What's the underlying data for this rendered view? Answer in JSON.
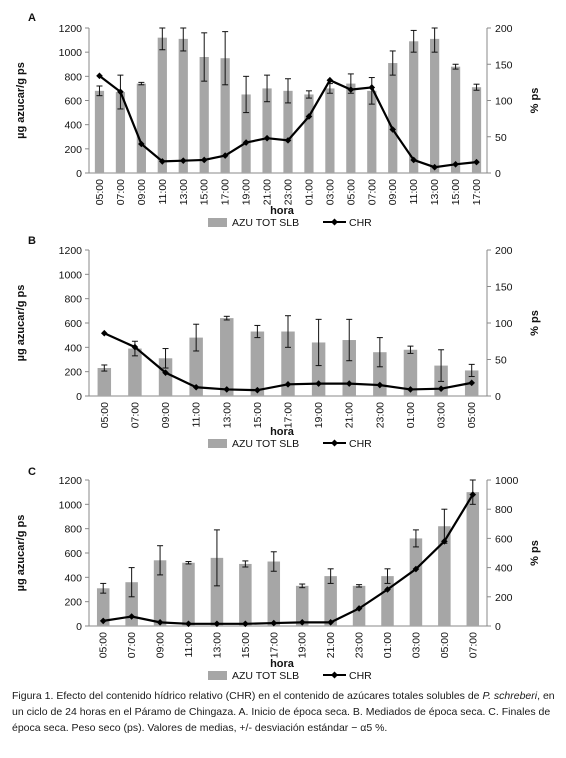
{
  "chart_data": [
    {
      "type": "bar",
      "panel_label": "A",
      "categories": [
        "05:00",
        "07:00",
        "09:00",
        "11:00",
        "13:00",
        "15:00",
        "17:00",
        "19:00",
        "21:00",
        "23:00",
        "01:00",
        "03:00",
        "05:00",
        "07:00",
        "09:00",
        "11:00",
        "13:00",
        "15:00",
        "17:00"
      ],
      "xlabel": "hora",
      "ylabel": "µg azucar/g ps",
      "y2label": "% ps",
      "ylim": [
        0,
        1200
      ],
      "y2lim": [
        0,
        200
      ],
      "yticks": [
        "0",
        "200",
        "400",
        "600",
        "800",
        "1000",
        "1200"
      ],
      "y2ticks": [
        "0",
        "50",
        "100",
        "150",
        "200"
      ],
      "series": [
        {
          "name": "AZU TOT SLB",
          "kind": "bar",
          "axis": "left",
          "color": "#a6a6a6",
          "values": [
            680,
            670,
            740,
            1120,
            1110,
            960,
            950,
            650,
            700,
            680,
            650,
            700,
            740,
            680,
            910,
            1090,
            1110,
            880,
            710
          ],
          "errors": [
            40,
            140,
            10,
            100,
            100,
            200,
            220,
            150,
            110,
            100,
            30,
            40,
            80,
            110,
            100,
            90,
            110,
            20,
            25
          ]
        },
        {
          "name": "CHR",
          "kind": "line",
          "axis": "right",
          "color": "#000000",
          "values": [
            134,
            112,
            40,
            16,
            17,
            18,
            24,
            42,
            48,
            45,
            78,
            128,
            115,
            118,
            60,
            18,
            8,
            12,
            15
          ]
        }
      ]
    },
    {
      "type": "bar",
      "panel_label": "B",
      "categories": [
        "05:00",
        "07:00",
        "09:00",
        "11:00",
        "13:00",
        "15:00",
        "17:00",
        "19:00",
        "21:00",
        "23:00",
        "01:00",
        "03:00",
        "05:00"
      ],
      "xlabel": "hora",
      "ylabel": "µg azucar/g ps",
      "y2label": "% ps",
      "ylim": [
        0,
        1200
      ],
      "y2lim": [
        0,
        200
      ],
      "yticks": [
        "0",
        "200",
        "400",
        "600",
        "800",
        "1000",
        "1200"
      ],
      "y2ticks": [
        "0",
        "50",
        "100",
        "150",
        "200"
      ],
      "series": [
        {
          "name": "AZU TOT SLB",
          "kind": "bar",
          "axis": "left",
          "color": "#a6a6a6",
          "values": [
            230,
            390,
            310,
            480,
            640,
            530,
            530,
            440,
            460,
            360,
            380,
            250,
            210
          ],
          "errors": [
            25,
            60,
            80,
            110,
            15,
            50,
            130,
            190,
            170,
            120,
            30,
            130,
            50
          ]
        },
        {
          "name": "CHR",
          "kind": "line",
          "axis": "right",
          "color": "#000000",
          "values": [
            86,
            67,
            32,
            12,
            9,
            8,
            16,
            17,
            17,
            15,
            9,
            10,
            18
          ]
        }
      ]
    },
    {
      "type": "bar",
      "panel_label": "C",
      "categories": [
        "05:00",
        "07:00",
        "09:00",
        "11:00",
        "13:00",
        "15:00",
        "17:00",
        "19:00",
        "21:00",
        "23:00",
        "01:00",
        "03:00",
        "05:00",
        "07:00"
      ],
      "xlabel": "hora",
      "ylabel": "µg azucar/g ps",
      "y2label": "% ps",
      "ylim": [
        0,
        1200
      ],
      "y2lim": [
        0,
        1000
      ],
      "yticks": [
        "0",
        "200",
        "400",
        "600",
        "800",
        "1000",
        "1200"
      ],
      "y2ticks": [
        "0",
        "200",
        "400",
        "600",
        "800",
        "1000"
      ],
      "series": [
        {
          "name": "AZU TOT SLB",
          "kind": "bar",
          "axis": "left",
          "color": "#a6a6a6",
          "values": [
            310,
            360,
            540,
            520,
            560,
            510,
            530,
            330,
            410,
            330,
            410,
            720,
            820,
            1100
          ],
          "errors": [
            40,
            120,
            120,
            10,
            230,
            25,
            80,
            15,
            60,
            10,
            60,
            70,
            140,
            100
          ]
        },
        {
          "name": "CHR",
          "kind": "line",
          "axis": "right",
          "color": "#000000",
          "values": [
            35,
            65,
            25,
            15,
            15,
            15,
            20,
            25,
            25,
            120,
            250,
            390,
            580,
            900
          ]
        }
      ]
    }
  ],
  "caption": {
    "prefix": "Figura 1. Efecto del contenido hídrico relativo (CHR) en el contenido de azúcares totales solubles de ",
    "species": "P. schreberi",
    "suffix": ", en un ciclo de 24 horas en el Páramo de Chingaza. A. Inicio de época seca. B. Mediados de época seca. C. Finales de época seca. Peso seco (ps). Valores de medias, +/- desviación estándar  − α5 %."
  }
}
